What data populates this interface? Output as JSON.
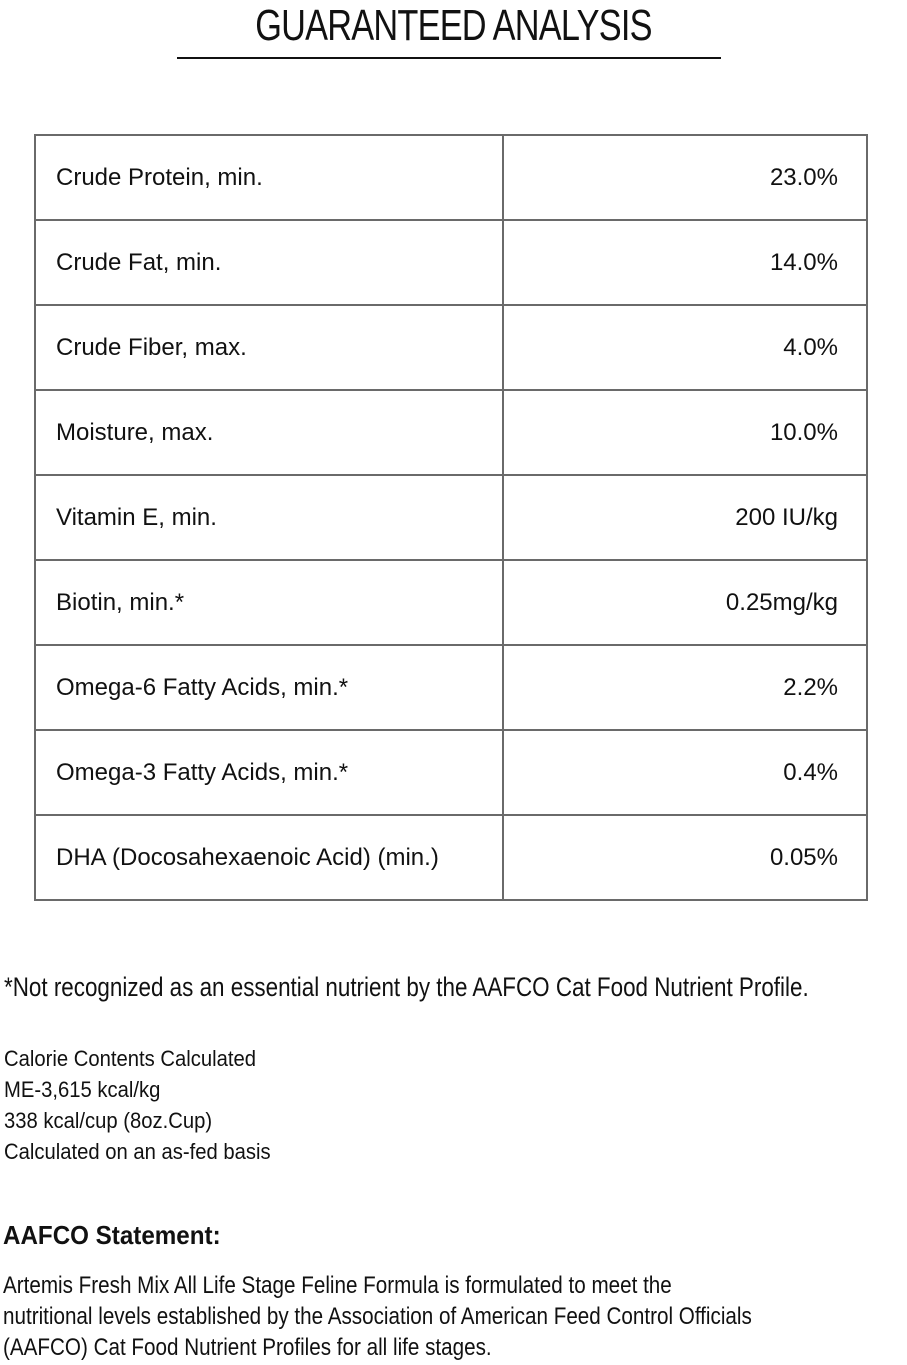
{
  "header": {
    "title": "GUARANTEED ANALYSIS"
  },
  "table": {
    "rows": [
      {
        "label": "Crude Protein, min.",
        "value": "23.0%"
      },
      {
        "label": "Crude Fat, min.",
        "value": "14.0%"
      },
      {
        "label": "Crude Fiber, max.",
        "value": "4.0%"
      },
      {
        "label": "Moisture, max.",
        "value": "10.0%"
      },
      {
        "label": "Vitamin E, min.",
        "value": "200 IU/kg"
      },
      {
        "label": "Biotin, min.*",
        "value": "0.25mg/kg"
      },
      {
        "label": "Omega-6 Fatty Acids, min.*",
        "value": "2.2%"
      },
      {
        "label": "Omega-3 Fatty Acids, min.*",
        "value": "0.4%"
      },
      {
        "label": "DHA (Docosahexaenoic Acid) (min.)",
        "value": "0.05%"
      }
    ]
  },
  "footnote": "*Not recognized as an essential nutrient by the AAFCO Cat Food Nutrient Profile.",
  "calories": {
    "lines": [
      "Calorie Contents Calculated",
      "ME-3,615 kcal/kg",
      "338 kcal/cup (8oz.Cup)",
      "Calculated on an as-fed basis"
    ]
  },
  "aafco": {
    "heading": "AAFCO Statement:",
    "lines": [
      "Artemis Fresh Mix All Life Stage Feline Formula is formulated to meet the",
      "nutritional levels established by the Association of American Feed Control Officials",
      "(AAFCO) Cat Food Nutrient Profiles for all life stages."
    ]
  }
}
